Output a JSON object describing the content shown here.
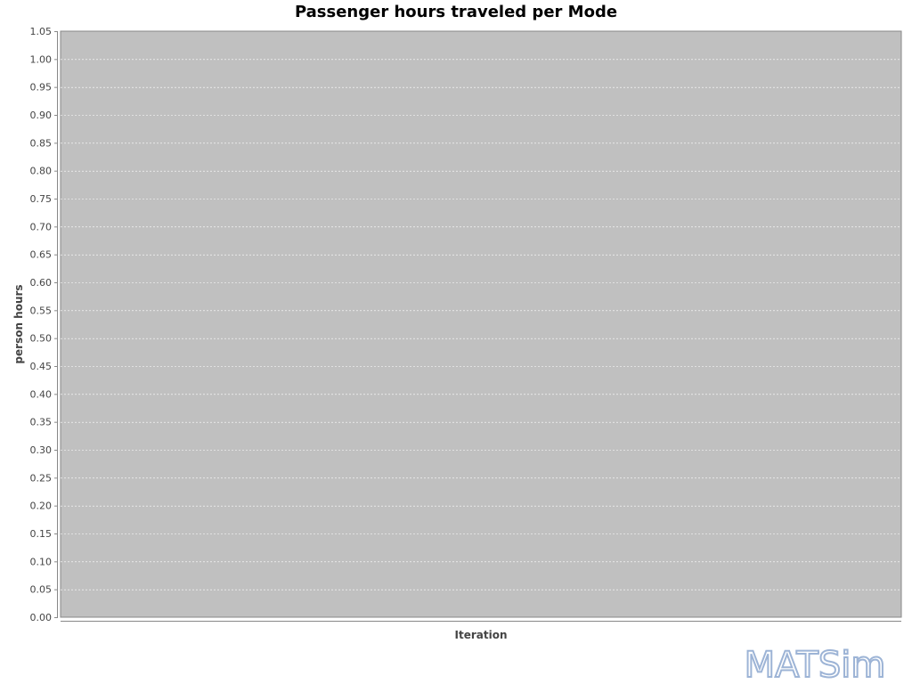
{
  "chart_data": {
    "type": "area",
    "title": "Passenger hours traveled per Mode",
    "xlabel": "Iteration",
    "ylabel": "person hours",
    "ylim": [
      0,
      1.05
    ],
    "yticks": [
      "0.00",
      "0.05",
      "0.10",
      "0.15",
      "0.20",
      "0.25",
      "0.30",
      "0.35",
      "0.40",
      "0.45",
      "0.50",
      "0.55",
      "0.60",
      "0.65",
      "0.70",
      "0.75",
      "0.80",
      "0.85",
      "0.90",
      "0.95",
      "1.00",
      "1.05"
    ],
    "ytick_values": [
      0,
      0.05,
      0.1,
      0.15,
      0.2,
      0.25,
      0.3,
      0.35,
      0.4,
      0.45,
      0.5,
      0.55,
      0.6,
      0.65,
      0.7,
      0.75,
      0.8,
      0.85,
      0.9,
      0.95,
      1.0,
      1.05
    ],
    "series": [],
    "grid": true
  },
  "colors": {
    "plot_background": "#c0c0c0",
    "gridline": "#ffffff",
    "axis": "#888888",
    "watermark": "#9db4d6"
  },
  "watermark": {
    "text": "MATSim"
  }
}
